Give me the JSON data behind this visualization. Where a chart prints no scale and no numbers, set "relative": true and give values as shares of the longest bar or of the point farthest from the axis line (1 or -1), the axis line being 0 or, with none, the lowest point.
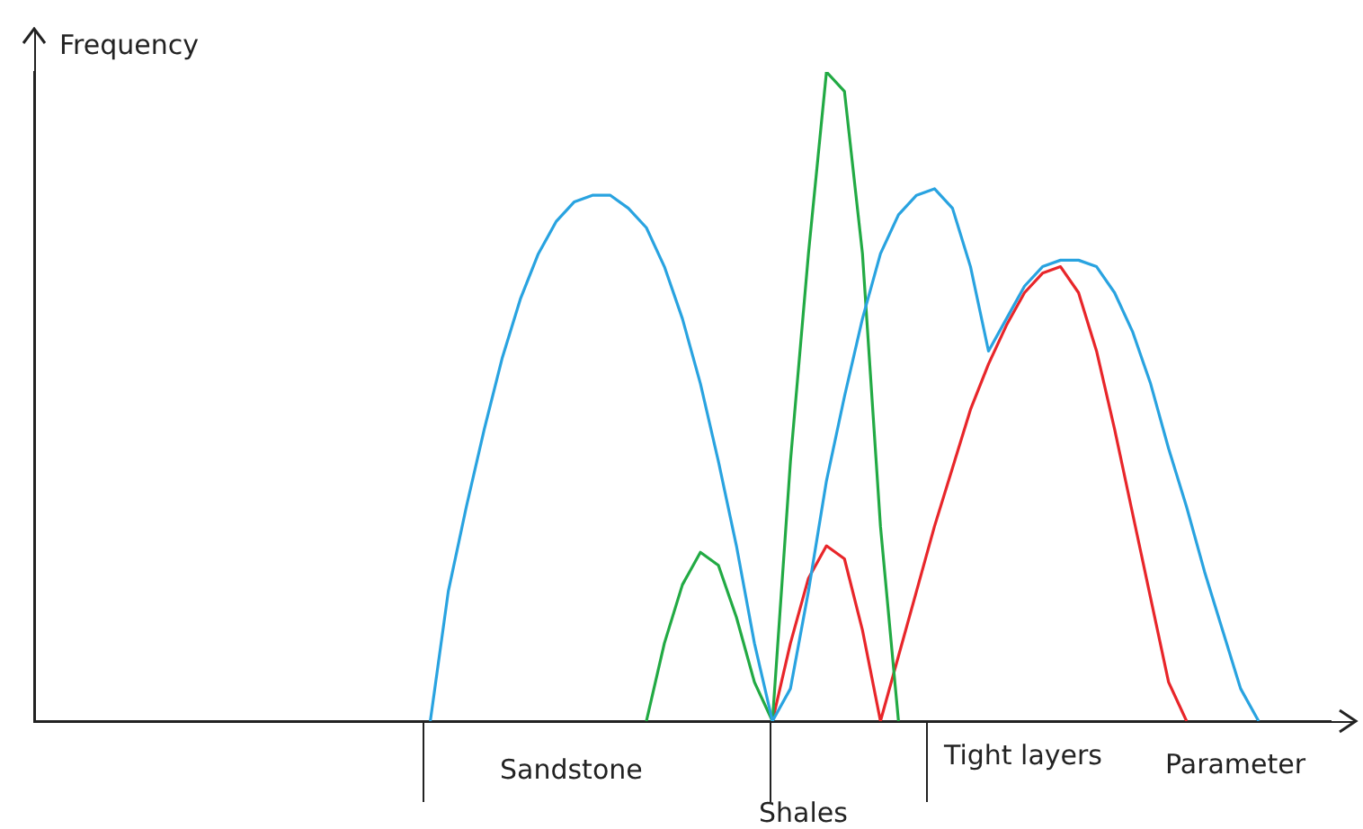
{
  "chart_data": {
    "type": "line",
    "relative": true,
    "tick_labels": false,
    "marker": "none",
    "legend": false,
    "grid": false,
    "xlabel": "Parameter",
    "ylabel": "Frequency",
    "annotations": [
      "Sandstone",
      "Shales",
      "Tight layers"
    ],
    "categories": [
      null,
      null,
      null,
      null,
      null,
      null,
      null,
      null,
      null,
      null,
      null,
      null,
      null,
      null,
      null,
      null,
      null,
      null,
      null,
      null,
      null,
      null,
      null,
      null,
      null,
      null,
      null,
      null,
      null,
      null,
      null,
      null,
      null,
      null,
      null,
      null,
      null,
      null,
      null,
      null,
      null,
      null,
      null,
      null,
      null,
      null,
      null,
      null,
      null,
      null,
      null,
      null,
      null,
      null,
      null,
      null,
      null,
      null,
      null,
      null,
      null,
      null,
      null,
      null,
      null,
      null,
      null,
      null,
      null,
      null,
      null,
      null,
      null
    ],
    "series": [
      {
        "color": "#29a3e0",
        "values": [
          null,
          null,
          null,
          null,
          null,
          null,
          null,
          null,
          null,
          null,
          null,
          null,
          null,
          null,
          null,
          null,
          null,
          null,
          null,
          null,
          null,
          null,
          0,
          0.2,
          0.33,
          0.45,
          0.56,
          0.65,
          0.72,
          0.77,
          0.8,
          0.81,
          0.81,
          0.79,
          0.76,
          0.7,
          0.62,
          0.52,
          0.4,
          0.27,
          0.12,
          0,
          0.05,
          0.2,
          0.37,
          0.5,
          0.62,
          0.72,
          0.78,
          0.81,
          0.82,
          0.79,
          0.7,
          0.57,
          0.62,
          0.67,
          0.7,
          0.71,
          0.71,
          0.7,
          0.66,
          0.6,
          0.52,
          0.42,
          0.33,
          0.23,
          0.14,
          0.05,
          0,
          null,
          null,
          null,
          null
        ]
      },
      {
        "color": "#22aa44",
        "values": [
          null,
          null,
          null,
          null,
          null,
          null,
          null,
          null,
          null,
          null,
          null,
          null,
          null,
          null,
          null,
          null,
          null,
          null,
          null,
          null,
          null,
          null,
          null,
          null,
          null,
          null,
          null,
          null,
          null,
          null,
          null,
          null,
          null,
          null,
          0,
          0.12,
          0.21,
          0.26,
          0.24,
          0.16,
          0.06,
          0,
          0.4,
          0.72,
          1,
          0.97,
          0.72,
          0.3,
          0,
          null,
          null,
          null,
          null,
          null,
          null,
          null,
          null,
          null,
          null,
          null,
          null,
          null,
          null,
          null,
          null,
          null,
          null,
          null,
          null,
          null,
          null,
          null,
          null
        ]
      },
      {
        "color": "#e8262a",
        "values": [
          null,
          null,
          null,
          null,
          null,
          null,
          null,
          null,
          null,
          null,
          null,
          null,
          null,
          null,
          null,
          null,
          null,
          null,
          null,
          null,
          null,
          null,
          null,
          null,
          null,
          null,
          null,
          null,
          null,
          null,
          null,
          null,
          null,
          null,
          null,
          null,
          null,
          null,
          null,
          null,
          null,
          0,
          0.12,
          0.22,
          0.27,
          0.25,
          0.14,
          0,
          0.1,
          0.2,
          0.3,
          0.39,
          0.48,
          0.55,
          0.61,
          0.66,
          0.69,
          0.7,
          0.66,
          0.57,
          0.45,
          0.32,
          0.19,
          0.06,
          0,
          null,
          null,
          null,
          null,
          null,
          null,
          null,
          null
        ]
      }
    ]
  }
}
